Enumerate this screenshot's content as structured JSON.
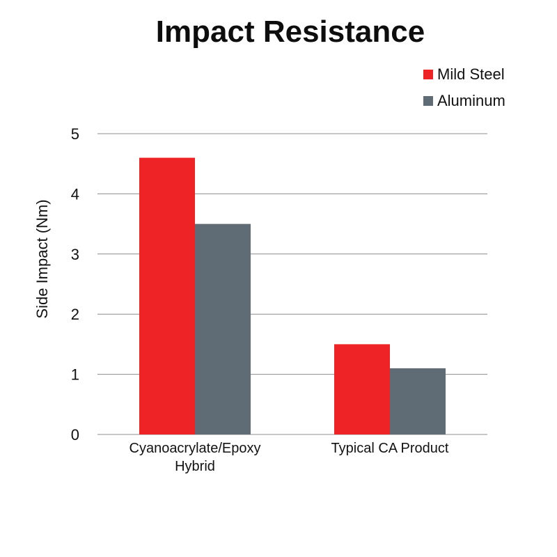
{
  "chart_data": {
    "type": "bar",
    "title": "Impact Resistance",
    "xlabel": "",
    "ylabel": "Side Impact (Nm)",
    "categories": [
      [
        "Cyanoacrylate/Epoxy",
        "Hybrid"
      ],
      [
        "Typical CA Product"
      ]
    ],
    "series": [
      {
        "name": "Mild Steel",
        "color": "#ee2326",
        "values": [
          4.6,
          1.5
        ]
      },
      {
        "name": "Aluminum",
        "color": "#5f6b75",
        "values": [
          3.5,
          1.1
        ]
      }
    ],
    "ylim": [
      0,
      5
    ],
    "yticks": [
      "0",
      "1",
      "2",
      "3",
      "4",
      "5"
    ],
    "grid": true,
    "legend_position": "top-right"
  }
}
